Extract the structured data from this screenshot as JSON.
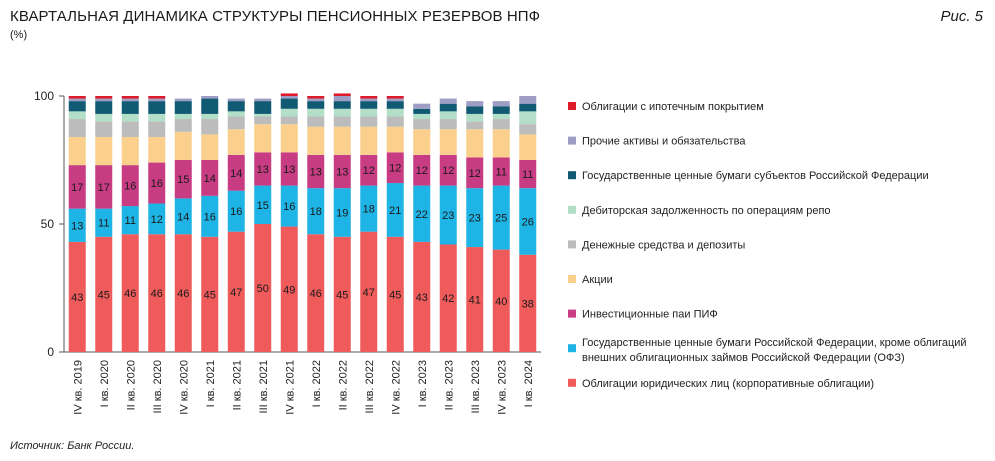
{
  "header": {
    "title": "КВАРТАЛЬНАЯ ДИНАМИКА СТРУКТУРЫ ПЕНСИОННЫХ РЕЗЕРВОВ НПФ",
    "unit": "(%)",
    "figure": "Рис. 5"
  },
  "footer": {
    "source": "Источник: Банк России."
  },
  "colors": {
    "corporate_bonds": "#ef5b5b",
    "ofz": "#1fb4e6",
    "mutual_funds": "#c83c84",
    "shares": "#fad08c",
    "cash": "#bcbcbc",
    "repo": "#b3dfc8",
    "regional_bonds": "#115a73",
    "other": "#9e9ec4",
    "mortgage": "#dd1b2b"
  },
  "chart_data": {
    "type": "bar",
    "stacked": true,
    "ylim": [
      0,
      100
    ],
    "yticks": [
      0,
      50,
      100
    ],
    "categories": [
      "IV кв. 2019",
      "I кв. 2020",
      "II кв. 2020",
      "III кв. 2020",
      "IV кв. 2020",
      "I кв. 2021",
      "II кв. 2021",
      "III кв. 2021",
      "IV кв. 2021",
      "I кв. 2022",
      "II кв. 2022",
      "III кв. 2022",
      "IV кв. 2022",
      "I кв. 2023",
      "II кв. 2023",
      "III кв. 2023",
      "IV кв. 2023",
      "I кв. 2024"
    ],
    "series": [
      {
        "key": "corporate_bonds",
        "name": "Облигации юридических лиц (корпоративные облигации)",
        "color": "#ef5b5b",
        "labeled": true,
        "values": [
          43,
          45,
          46,
          46,
          46,
          45,
          47,
          50,
          49,
          46,
          45,
          47,
          45,
          43,
          42,
          41,
          40,
          38
        ]
      },
      {
        "key": "ofz",
        "name": "Государственные ценные бумаги Российской Федерации, кроме облигаций внешних облигационных займов Российской Федерации (ОФЗ)",
        "color": "#1fb4e6",
        "labeled": true,
        "values": [
          13,
          11,
          11,
          12,
          14,
          16,
          16,
          15,
          16,
          18,
          19,
          18,
          21,
          22,
          23,
          23,
          25,
          26
        ]
      },
      {
        "key": "mutual_funds",
        "name": "Инвестиционные паи ПИФ",
        "color": "#c83c84",
        "labeled": true,
        "values": [
          17,
          17,
          16,
          16,
          15,
          14,
          14,
          13,
          13,
          13,
          13,
          12,
          12,
          12,
          12,
          12,
          11,
          11
        ]
      },
      {
        "key": "shares",
        "name": "Акции",
        "color": "#fad08c",
        "labeled": false,
        "values": [
          11,
          11,
          11,
          10,
          11,
          10,
          10,
          11,
          11,
          11,
          11,
          11,
          10,
          10,
          10,
          11,
          11,
          10
        ]
      },
      {
        "key": "cash",
        "name": "Денежные средства и депозиты",
        "color": "#bcbcbc",
        "labeled": false,
        "values": [
          7,
          6,
          6,
          6,
          5,
          6,
          5,
          3,
          3,
          4,
          4,
          4,
          4,
          4,
          4,
          3,
          4,
          4
        ]
      },
      {
        "key": "repo",
        "name": "Дебиторская задолженность по операциям репо",
        "color": "#b3dfc8",
        "labeled": false,
        "values": [
          3,
          3,
          3,
          3,
          2,
          2,
          2,
          1,
          3,
          3,
          3,
          3,
          3,
          2,
          3,
          3,
          2,
          5
        ]
      },
      {
        "key": "regional_bonds",
        "name": "Государственные ценные бумаги субъектов Российской Федерации",
        "color": "#115a73",
        "labeled": false,
        "values": [
          4,
          5,
          5,
          5,
          5,
          6,
          4,
          5,
          4,
          3,
          3,
          3,
          3,
          2,
          3,
          3,
          3,
          3
        ]
      },
      {
        "key": "other",
        "name": "Прочие активы и обязательства",
        "color": "#9e9ec4",
        "labeled": false,
        "values": [
          1,
          1,
          1,
          1,
          1,
          1,
          1,
          1,
          1,
          1,
          2,
          1,
          1,
          2,
          2,
          2,
          2,
          3
        ]
      },
      {
        "key": "mortgage",
        "name": "Облигации с ипотечным покрытием",
        "color": "#dd1b2b",
        "labeled": false,
        "values": [
          1,
          1,
          1,
          1,
          0,
          0,
          0,
          0,
          1,
          1,
          1,
          1,
          1,
          0,
          0,
          0,
          0,
          0
        ]
      }
    ],
    "legend": [
      {
        "key": "mortgage",
        "label": "Облигации с ипотечным покрытием"
      },
      {
        "key": "other",
        "label": "Прочие активы и обязательства"
      },
      {
        "key": "regional_bonds",
        "label": "Государственные ценные бумаги субъектов Российской Федерации"
      },
      {
        "key": "repo",
        "label": "Дебиторская задолженность по операциям репо"
      },
      {
        "key": "cash",
        "label": "Денежные средства и депозиты"
      },
      {
        "key": "shares",
        "label": "Акции"
      },
      {
        "key": "mutual_funds",
        "label": "Инвестиционные паи ПИФ"
      },
      {
        "key": "ofz",
        "label": [
          "Государственные ценные бумаги Российской Федерации, кроме облигаций",
          "внешних облигационных займов Российской Федерации (ОФЗ)"
        ]
      },
      {
        "key": "corporate_bonds",
        "label": "Облигации юридических лиц (корпоративные облигации)"
      }
    ],
    "legend_position": "right",
    "grid": false
  }
}
